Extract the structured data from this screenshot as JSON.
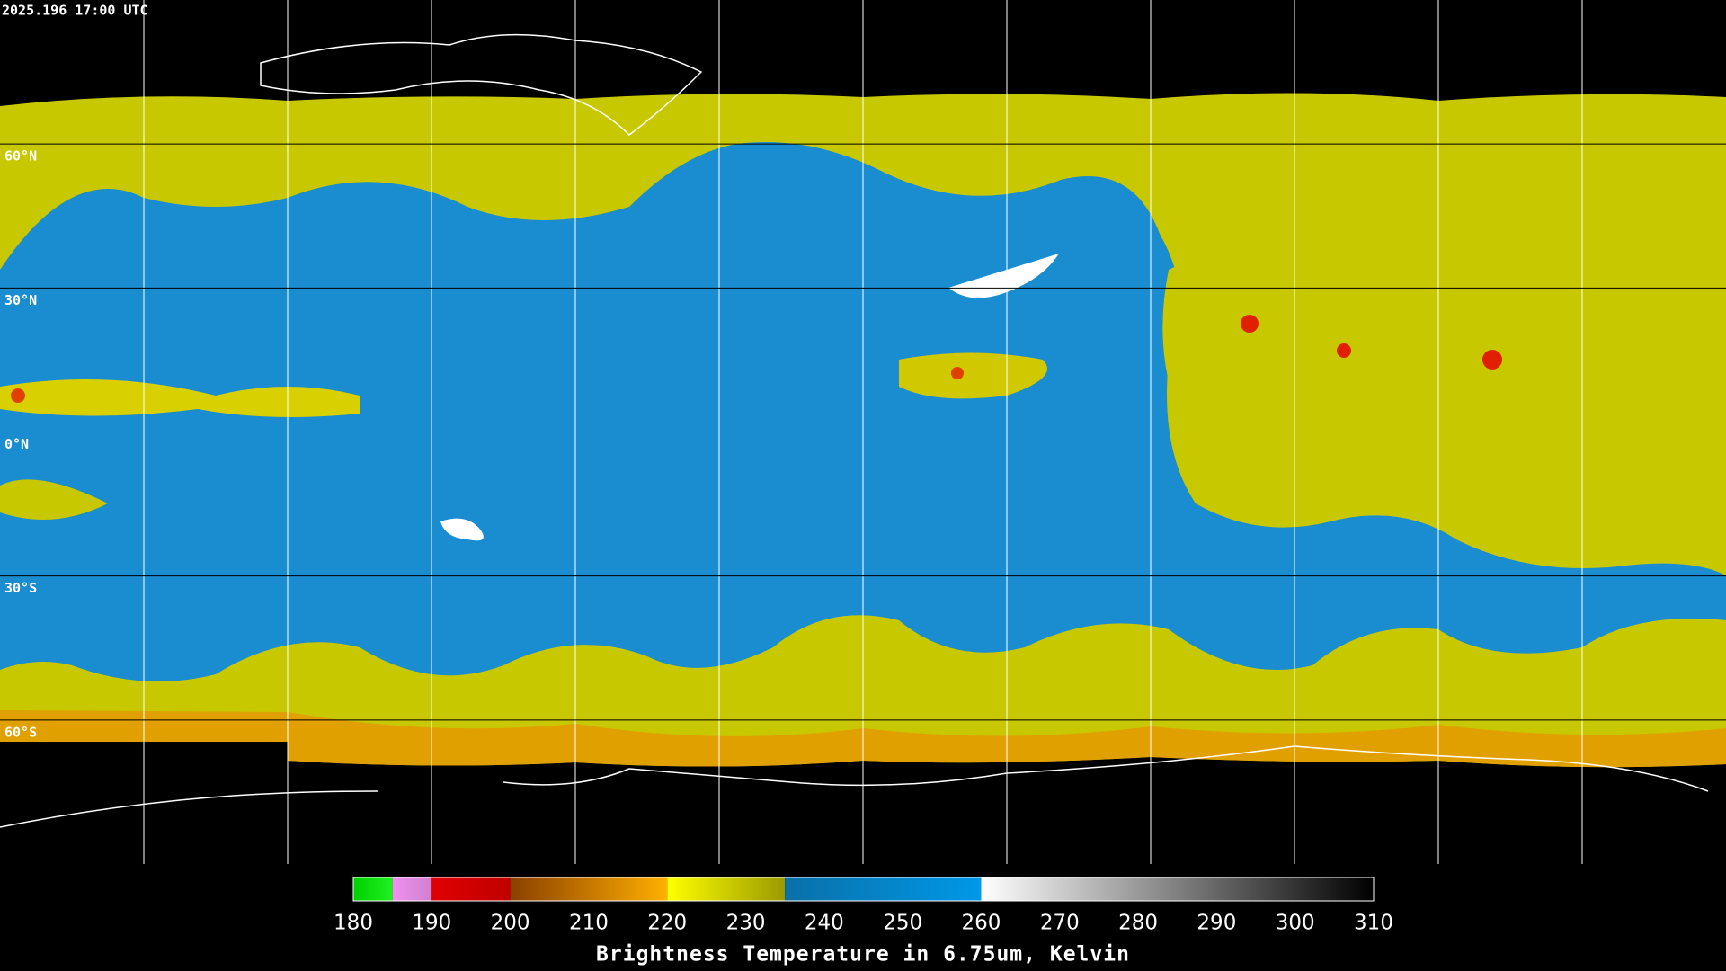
{
  "header": {
    "timestamp": "2025.196 17:00 UTC"
  },
  "map": {
    "lon_range": [
      -180,
      180
    ],
    "lat_range": [
      -90,
      90
    ],
    "lon_lines": [
      -150,
      -120,
      -90,
      -60,
      -30,
      0,
      30,
      60,
      90,
      120,
      150
    ],
    "lat_lines": [
      {
        "value": 60,
        "label": "60°N"
      },
      {
        "value": 30,
        "label": "30°N"
      },
      {
        "value": 0,
        "label": "0°N"
      },
      {
        "value": -30,
        "label": "30°S"
      },
      {
        "value": -60,
        "label": "60°S"
      }
    ]
  },
  "colorbar": {
    "title": "Brightness Temperature in 6.75um, Kelvin",
    "range": [
      180,
      310
    ],
    "ticks": [
      180,
      190,
      200,
      210,
      220,
      230,
      240,
      250,
      260,
      270,
      280,
      290,
      300,
      310
    ],
    "segments": [
      {
        "from": 180,
        "to": 185,
        "colors": [
          "#00d000",
          "#20f020"
        ]
      },
      {
        "from": 185,
        "to": 190,
        "colors": [
          "#f090f0",
          "#d080d0"
        ]
      },
      {
        "from": 190,
        "to": 200,
        "colors": [
          "#e00000",
          "#c00000"
        ]
      },
      {
        "from": 200,
        "to": 220,
        "colors": [
          "#8a4000",
          "#ffb000"
        ]
      },
      {
        "from": 220,
        "to": 235,
        "colors": [
          "#ffff00",
          "#9a9a00"
        ]
      },
      {
        "from": 235,
        "to": 260,
        "colors": [
          "#0a70a8",
          "#0098e8"
        ]
      },
      {
        "from": 260,
        "to": 310,
        "colors": [
          "#ffffff",
          "#000000"
        ]
      }
    ]
  }
}
